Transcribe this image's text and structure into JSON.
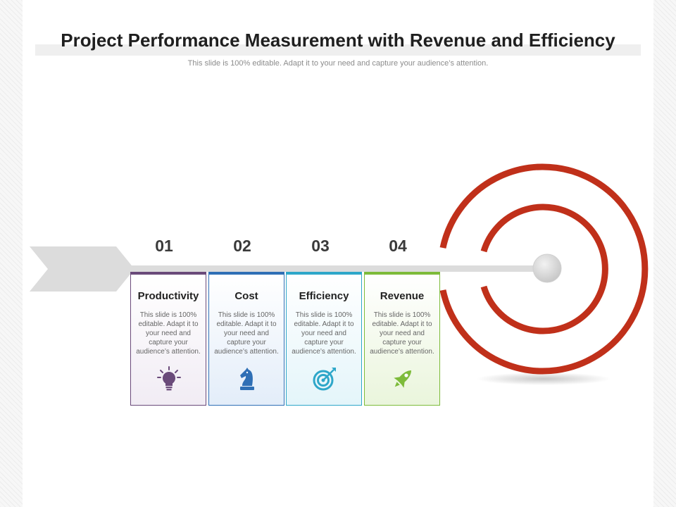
{
  "title": "Project Performance Measurement with Revenue and Efficiency",
  "subtitle": "This slide is 100% editable. Adapt it to your need and capture your audience’s attention.",
  "steps": [
    {
      "number": "01",
      "label": "Productivity",
      "description": "This slide is 100% editable. Adapt it to your need and capture your audience’s attention.",
      "icon": "lightbulb-icon",
      "color": "#6a4a7a"
    },
    {
      "number": "02",
      "label": "Cost",
      "description": "This slide is 100% editable. Adapt it to your need and capture your audience’s attention.",
      "icon": "chess-knight-icon",
      "color": "#2f6fb5"
    },
    {
      "number": "03",
      "label": "Efficiency",
      "description": "This slide is 100% editable. Adapt it to your need and capture your audience’s attention.",
      "icon": "target-icon",
      "color": "#2ea7c9"
    },
    {
      "number": "04",
      "label": "Revenue",
      "description": "This slide is 100% editable. Adapt it to your need and capture your audience’s attention.",
      "icon": "rocket-icon",
      "color": "#7dbb3a"
    }
  ],
  "colors": {
    "target": "#c0301a",
    "arrow": "#dcdcdc",
    "text": "#1f1f1f"
  }
}
